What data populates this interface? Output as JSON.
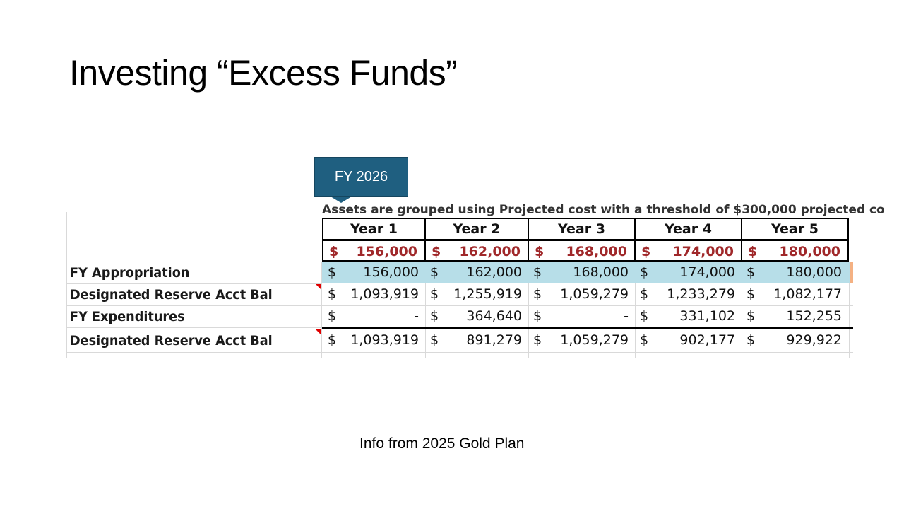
{
  "slide": {
    "title": "Investing “Excess Funds”",
    "callout": "FY 2026",
    "cutoff_text": "Assets are grouped using Projected cost with a threshold of $300,000 projected co",
    "footer": "Info from 2025 Gold Plan"
  },
  "table": {
    "columns": [
      "Year 1",
      "Year 2",
      "Year 3",
      "Year 4",
      "Year 5"
    ],
    "currency_symbol": "$",
    "rows": [
      {
        "label": "",
        "values": [
          "156,000",
          "162,000",
          "168,000",
          "174,000",
          "180,000"
        ],
        "style": "red"
      },
      {
        "label": "FY Appropriation",
        "values": [
          "156,000",
          "162,000",
          "168,000",
          "174,000",
          "180,000"
        ],
        "style": "blue"
      },
      {
        "label": "Designated Reserve Acct Bal",
        "values": [
          "1,093,919",
          "1,255,919",
          "1,059,279",
          "1,233,279",
          "1,082,177"
        ],
        "style": "plain",
        "comment_marker": true
      },
      {
        "label": "FY Expenditures",
        "values": [
          "-",
          "364,640",
          "-",
          "331,102",
          "152,255"
        ],
        "style": "plain"
      },
      {
        "label": "Designated Reserve Acct Bal",
        "values": [
          "1,093,919",
          "891,279",
          "1,059,279",
          "902,177",
          "929,922"
        ],
        "style": "plain",
        "comment_marker": true
      }
    ]
  },
  "colors": {
    "callout": "#1f5f80",
    "highlight_row": "#b7dee8",
    "red_values": "#a0282a",
    "comment_marker": "#e00000"
  }
}
